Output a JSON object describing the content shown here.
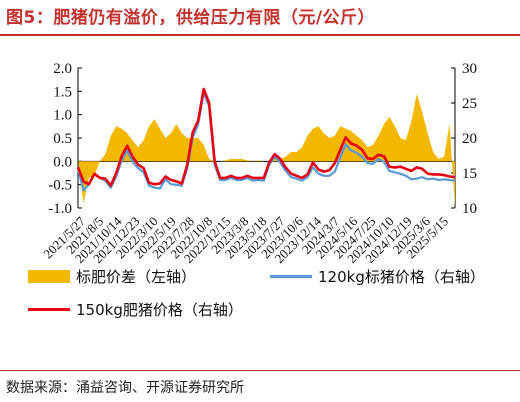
{
  "title": "图5：肥猪仍有溢价，供给压力有限（元/公斤）",
  "source": "数据来源：涌益咨询、开源证券研究所",
  "colors": {
    "brand": "#c4312d",
    "area": "#f5b800",
    "line120": "#5b9bd5",
    "line150": "#e60012"
  },
  "chart_data": {
    "type": "line",
    "x_tick_labels": [
      "2021/5/27",
      "2021/8/5",
      "2021/10/14",
      "2021/12/23",
      "2022/3/10",
      "2022/5/19",
      "2022/7/28",
      "2022/10/8",
      "2022/12/15",
      "2023/3/8",
      "2023/5/18",
      "2023/7/27",
      "2023/10/6",
      "2023/12/14",
      "2024/3/7",
      "2024/5/16",
      "2024/7/25",
      "2024/10/10",
      "2024/12/19",
      "2025/3/6",
      "2025/5/15"
    ],
    "y_left": {
      "ylim": [
        -1.0,
        2.0
      ],
      "ticks": [
        "-1.0",
        "-0.5",
        "0.0",
        "0.5",
        "1.0",
        "1.5",
        "2.0"
      ]
    },
    "y_right": {
      "ylim": [
        10,
        30
      ],
      "ticks": [
        "10",
        "15",
        "20",
        "25",
        "30"
      ]
    },
    "grid": false,
    "legend_position": "bottom",
    "series": [
      {
        "name": "标肥价差（左轴）",
        "type": "area",
        "axis": "left",
        "values": [
          0.05,
          -0.9,
          -0.35,
          -0.3,
          0.0,
          0.15,
          0.55,
          0.75,
          0.7,
          0.6,
          0.45,
          0.3,
          0.45,
          0.75,
          0.9,
          0.7,
          0.5,
          0.6,
          0.8,
          0.6,
          0.5,
          0.5,
          0.5,
          0.35,
          0.05,
          0.0,
          0.0,
          0.02,
          0.05,
          0.05,
          0.05,
          0.02,
          0.0,
          0.02,
          0.0,
          0.0,
          0.05,
          0.05,
          0.1,
          0.2,
          0.2,
          0.3,
          0.55,
          0.7,
          0.75,
          0.6,
          0.5,
          0.55,
          0.75,
          0.7,
          0.65,
          0.55,
          0.45,
          0.3,
          0.35,
          0.55,
          0.8,
          0.95,
          0.75,
          0.5,
          0.45,
          0.85,
          1.45,
          1.05,
          0.6,
          0.2,
          0.05,
          0.1,
          0.8,
          -1.0
        ]
      },
      {
        "name": "120kg标猪价格（右轴）",
        "type": "line",
        "axis": "right",
        "values": [
          15.6,
          12.5,
          13.4,
          14.8,
          14.3,
          13.9,
          12.9,
          14.5,
          16.8,
          18.2,
          16.6,
          15.7,
          15.1,
          13.2,
          12.9,
          12.8,
          14.1,
          13.4,
          13.3,
          13.2,
          15.7,
          20.1,
          22.0,
          26.5,
          24.5,
          16.2,
          14.0,
          14.0,
          14.3,
          14.0,
          14.0,
          14.3,
          13.9,
          14.0,
          13.9,
          16.2,
          17.3,
          16.5,
          15.3,
          14.4,
          14.2,
          13.9,
          14.4,
          15.8,
          14.9,
          14.6,
          14.6,
          15.2,
          17.2,
          19.1,
          18.2,
          17.9,
          17.3,
          16.4,
          16.3,
          17.0,
          16.6,
          15.3,
          15.1,
          14.9,
          14.6,
          14.1,
          14.2,
          14.4,
          14.1,
          14.2,
          14.0,
          14.1,
          14.0,
          13.9
        ]
      },
      {
        "name": "150kg肥猪价格（右轴）",
        "type": "line",
        "axis": "right",
        "values": [
          15.8,
          13.8,
          13.4,
          14.9,
          14.3,
          14.2,
          13.2,
          15.0,
          17.4,
          18.9,
          17.3,
          16.2,
          15.7,
          13.6,
          13.4,
          13.5,
          14.5,
          14.0,
          13.8,
          13.5,
          16.2,
          20.8,
          22.5,
          27.0,
          25.0,
          16.7,
          14.3,
          14.3,
          14.6,
          14.3,
          14.3,
          14.6,
          14.3,
          14.3,
          14.3,
          16.5,
          17.7,
          17.0,
          15.8,
          14.9,
          14.6,
          14.3,
          14.8,
          16.5,
          15.5,
          15.2,
          15.4,
          16.4,
          18.3,
          20.1,
          19.2,
          18.9,
          18.3,
          17.1,
          17.0,
          17.6,
          17.4,
          15.9,
          15.8,
          15.9,
          15.6,
          15.3,
          15.8,
          15.6,
          14.9,
          14.8,
          14.8,
          14.7,
          14.5,
          14.4
        ]
      }
    ]
  }
}
